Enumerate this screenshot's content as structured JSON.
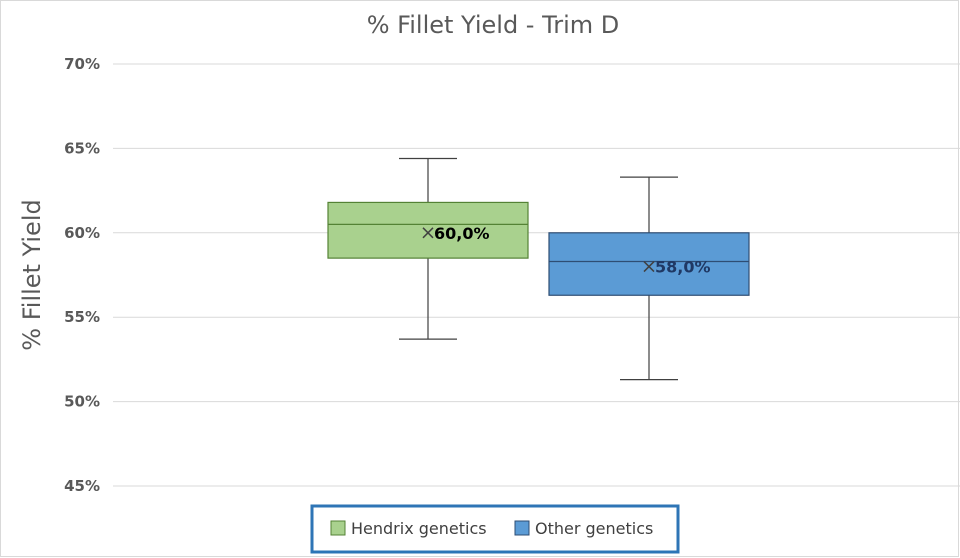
{
  "chart_data": {
    "type": "box",
    "title": "% Fillet Yield - Trim D",
    "ylabel": "% Fillet Yield",
    "xlabel": "",
    "ylim": [
      45,
      70
    ],
    "yticks": [
      45,
      50,
      55,
      60,
      65,
      70
    ],
    "ytick_labels": [
      "45%",
      "50%",
      "55%",
      "60%",
      "65%",
      "70%"
    ],
    "grid": true,
    "legend_position": "bottom",
    "series": [
      {
        "name": "Hendrix genetics",
        "min": 53.7,
        "q1": 58.5,
        "median": 60.5,
        "q3": 61.8,
        "max": 64.4,
        "mean": 60.0,
        "mean_label": "60,0%",
        "fill": "#a9d18e",
        "stroke": "#548235",
        "label_color": "#000000"
      },
      {
        "name": "Other genetics",
        "min": 51.3,
        "q1": 56.3,
        "median": 58.3,
        "q3": 60.0,
        "max": 63.3,
        "mean": 58.0,
        "mean_label": "58,0%",
        "fill": "#5b9bd5",
        "stroke": "#2e4d73",
        "label_color": "#1f3864"
      }
    ]
  }
}
